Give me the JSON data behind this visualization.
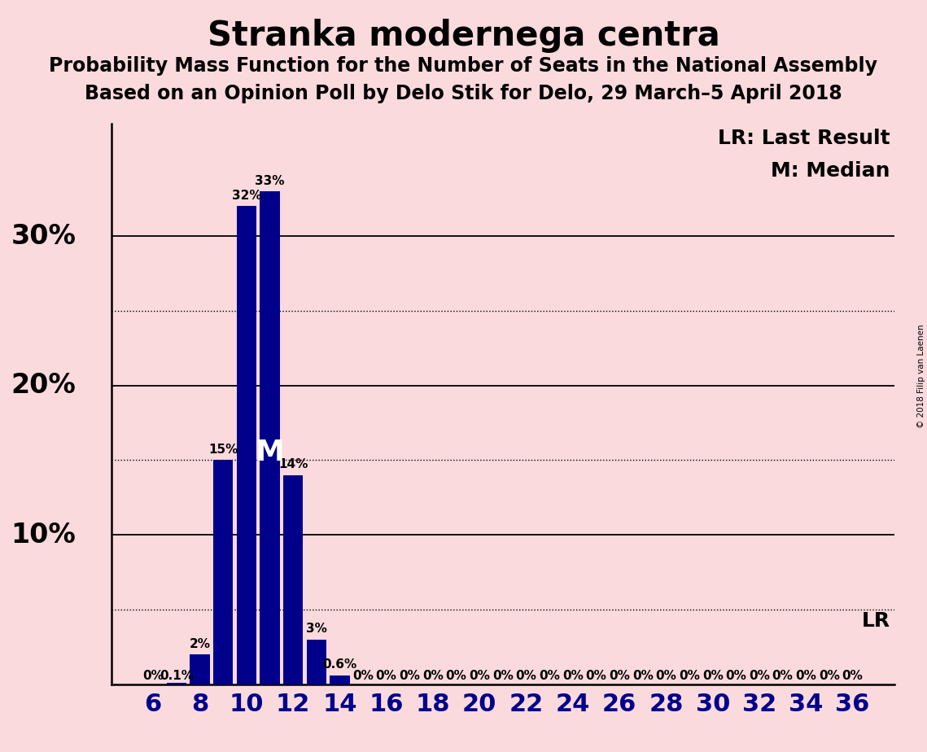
{
  "title": "Stranka modernega centra",
  "subtitle1": "Probability Mass Function for the Number of Seats in the National Assembly",
  "subtitle2": "Based on an Opinion Poll by Delo Stik for Delo, 29 March–5 April 2018",
  "copyright": "© 2018 Filip van Laenen",
  "background_color": "#fadadd",
  "bar_color": "#00008B",
  "seats": [
    6,
    7,
    8,
    9,
    10,
    11,
    12,
    13,
    14,
    15,
    16,
    17,
    18,
    19,
    20,
    21,
    22,
    23,
    24,
    25,
    26,
    27,
    28,
    29,
    30,
    31,
    32,
    33,
    34,
    35,
    36
  ],
  "probabilities": [
    0.0,
    0.001,
    0.02,
    0.15,
    0.32,
    0.33,
    0.14,
    0.03,
    0.006,
    0.0,
    0.0,
    0.0,
    0.0,
    0.0,
    0.0,
    0.0,
    0.0,
    0.0,
    0.0,
    0.0,
    0.0,
    0.0,
    0.0,
    0.0,
    0.0,
    0.0,
    0.0,
    0.0,
    0.0,
    0.0,
    0.0
  ],
  "bar_labels": [
    "0%",
    "0.1%",
    "2%",
    "15%",
    "32%",
    "33%",
    "14%",
    "3%",
    "0.6%",
    "0%",
    "0%",
    "0%",
    "0%",
    "0%",
    "0%",
    "0%",
    "0%",
    "0%",
    "0%",
    "0%",
    "0%",
    "0%",
    "0%",
    "0%",
    "0%",
    "0%",
    "0%",
    "0%",
    "0%",
    "0%",
    "0%"
  ],
  "median_seat": 11,
  "lr_value": 0.05,
  "dotted_lines": [
    0.05,
    0.15,
    0.25
  ],
  "solid_lines": [
    0.1,
    0.2,
    0.3
  ],
  "ylabel_vals": [
    0.1,
    0.2,
    0.3
  ],
  "ylabel_labels": [
    "10%",
    "20%",
    "30%"
  ],
  "title_fontsize": 30,
  "subtitle_fontsize": 17,
  "axis_label_fontsize": 22,
  "bar_label_fontsize": 11,
  "legend_fontsize": 18,
  "ylabel_fontsize": 24
}
